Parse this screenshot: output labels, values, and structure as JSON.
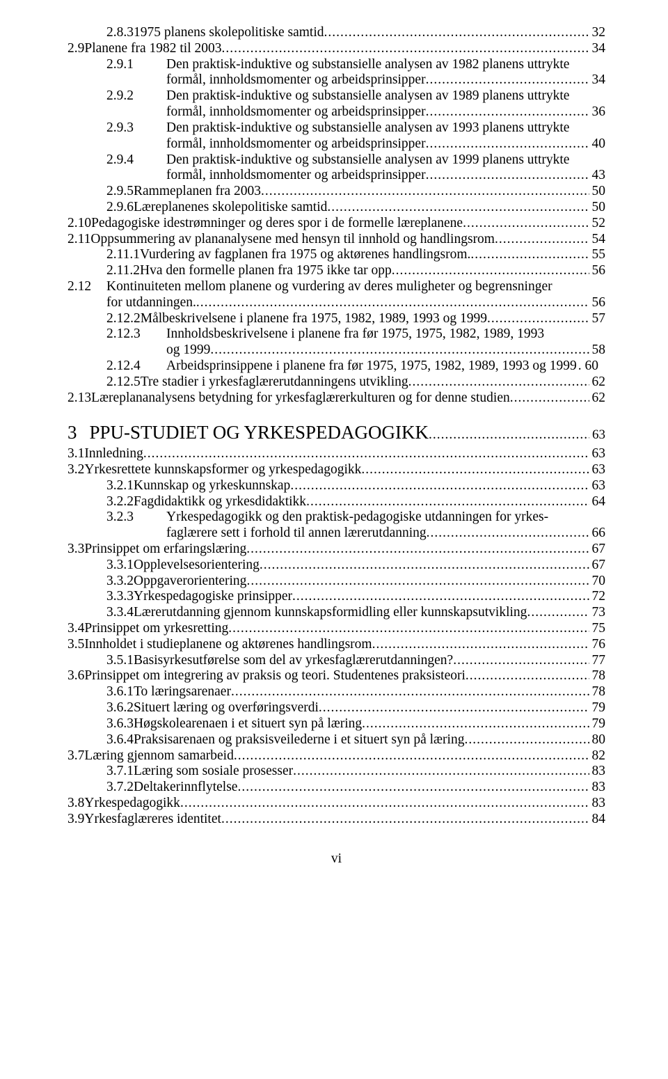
{
  "entries": [
    {
      "lvl": "l3",
      "num": "2.8.3",
      "numw": 86,
      "text": "1975 planens skolepolitiske samtid",
      "page": "32"
    },
    {
      "lvl": "l2",
      "num": "2.9",
      "numw": 56,
      "text": "Planene fra 1982 til 2003",
      "page": "34"
    },
    {
      "lvl": "l3",
      "num": "2.9.1",
      "numw": 86,
      "text": "Den praktisk-induktive og substansielle analysen av 1982 planens uttrykte",
      "cont": "formål, innholdsmomenter og arbeidsprinsipper",
      "page": "34"
    },
    {
      "lvl": "l3",
      "num": "2.9.2",
      "numw": 86,
      "text": "Den praktisk-induktive og substansielle analysen av 1989 planens uttrykte",
      "cont": "formål, innholdsmomenter og arbeidsprinsipper",
      "page": "36"
    },
    {
      "lvl": "l3",
      "num": "2.9.3",
      "numw": 86,
      "text": "Den praktisk-induktive og substansielle analysen av 1993 planens uttrykte",
      "cont": "formål, innholdsmomenter og arbeidsprinsipper",
      "page": "40"
    },
    {
      "lvl": "l3",
      "num": "2.9.4",
      "numw": 86,
      "text": "Den praktisk-induktive og substansielle analysen av 1999 planens uttrykte",
      "cont": "formål, innholdsmomenter og arbeidsprinsipper",
      "page": "43"
    },
    {
      "lvl": "l3",
      "num": "2.9.5",
      "numw": 86,
      "text": "Rammeplanen fra 2003",
      "page": "50"
    },
    {
      "lvl": "l3",
      "num": "2.9.6",
      "numw": 86,
      "text": "Læreplanenes skolepolitiske samtid",
      "page": "50"
    },
    {
      "lvl": "l2",
      "num": "2.10",
      "numw": 56,
      "text": "Pedagogiske idestrømninger og deres spor i de formelle læreplanene",
      "page": "52"
    },
    {
      "lvl": "l2",
      "num": "2.11",
      "numw": 56,
      "text": "Oppsummering av plananalysene med hensyn til innhold og handlingsrom",
      "page": "54"
    },
    {
      "lvl": "l3",
      "num": "2.11.1",
      "numw": 86,
      "text": "Vurdering av fagplanen fra 1975 og aktørenes handlingsrom.",
      "page": "55"
    },
    {
      "lvl": "l3",
      "num": "2.11.2",
      "numw": 86,
      "text": "Hva den formelle planen fra 1975 ikke tar opp",
      "page": "56"
    },
    {
      "lvl": "l2",
      "num": "2.12",
      "numw": 56,
      "text": "Kontinuiteten mellom planene og vurdering av deres muligheter og begrensninger",
      "cont2": "for utdanningen.",
      "page": "56"
    },
    {
      "lvl": "l3",
      "num": "2.12.2",
      "numw": 86,
      "text": "Målbeskrivelsene i planene fra 1975, 1982, 1989, 1993 og 1999",
      "page": "57"
    },
    {
      "lvl": "l3",
      "num": "2.12.3",
      "numw": 86,
      "text": "Innholdsbeskrivelsene i planene fra før 1975, 1975, 1982, 1989, 1993",
      "cont": "og 1999",
      "page": "58"
    },
    {
      "lvl": "l3",
      "num": "2.12.4",
      "numw": 86,
      "text": "Arbeidsprinsippene i planene fra før 1975, 1975, 1982, 1989, 1993 og 1999",
      "page": "60",
      "tight": true
    },
    {
      "lvl": "l3",
      "num": "2.12.5",
      "numw": 86,
      "text": "Tre stadier i yrkesfaglærerutdanningens utvikling",
      "page": "62"
    },
    {
      "lvl": "l2",
      "num": "2.13",
      "numw": 56,
      "text": "Læreplananalysens betydning for yrkesfaglærerkulturen og for denne studien",
      "page": "62"
    }
  ],
  "chapter": {
    "num": "3",
    "title": "PPU-STUDIET OG YRKESPEDAGOGIKK",
    "page": "63"
  },
  "entries2": [
    {
      "lvl": "l2",
      "num": "3.1",
      "numw": 56,
      "text": "Innledning",
      "page": "63"
    },
    {
      "lvl": "l2",
      "num": "3.2",
      "numw": 56,
      "text": "Yrkesrettete kunnskapsformer og yrkespedagogikk",
      "page": "63"
    },
    {
      "lvl": "l3",
      "num": "3.2.1",
      "numw": 86,
      "text": "Kunnskap og yrkeskunnskap",
      "page": "63"
    },
    {
      "lvl": "l3",
      "num": "3.2.2",
      "numw": 86,
      "text": "Fagdidaktikk og yrkesdidaktikk",
      "page": "64"
    },
    {
      "lvl": "l3",
      "num": "3.2.3",
      "numw": 86,
      "text": "Yrkespedagogikk og den praktisk-pedagogiske utdanningen for yrkes-",
      "cont": "faglærere sett i forhold til annen lærerutdanning",
      "page": "66"
    },
    {
      "lvl": "l2",
      "num": "3.3",
      "numw": 56,
      "text": "Prinsippet om erfaringslæring",
      "page": "67"
    },
    {
      "lvl": "l3",
      "num": "3.3.1",
      "numw": 86,
      "text": "Opplevelsesorientering",
      "page": "67"
    },
    {
      "lvl": "l3",
      "num": "3.3.2",
      "numw": 86,
      "text": "Oppgaverorientering",
      "page": "70"
    },
    {
      "lvl": "l3",
      "num": "3.3.3",
      "numw": 86,
      "text": "Yrkespedagogiske prinsipper",
      "page": "72"
    },
    {
      "lvl": "l3",
      "num": "3.3.4",
      "numw": 86,
      "text": "Lærerutdanning gjennom kunnskapsformidling eller kunnskapsutvikling",
      "page": "73"
    },
    {
      "lvl": "l2",
      "num": "3.4",
      "numw": 56,
      "text": "Prinsippet om yrkesretting",
      "page": "75"
    },
    {
      "lvl": "l2",
      "num": "3.5",
      "numw": 56,
      "text": "Innholdet i studieplanene og aktørenes handlingsrom",
      "page": "76"
    },
    {
      "lvl": "l3",
      "num": "3.5.1",
      "numw": 86,
      "text": "Basisyrkesutførelse som del av yrkesfaglærerutdanningen?",
      "page": "77"
    },
    {
      "lvl": "l2",
      "num": "3.6",
      "numw": 56,
      "text": "Prinsippet om integrering av praksis og teori. Studentenes praksisteori",
      "page": "78"
    },
    {
      "lvl": "l3",
      "num": "3.6.1",
      "numw": 86,
      "text": "To læringsarenaer",
      "page": "78"
    },
    {
      "lvl": "l3",
      "num": "3.6.2",
      "numw": 86,
      "text": "Situert læring og overføringsverdi",
      "page": "79"
    },
    {
      "lvl": "l3",
      "num": "3.6.3",
      "numw": 86,
      "text": "Høgskolearenaen i et situert syn på læring",
      "page": "79"
    },
    {
      "lvl": "l3",
      "num": "3.6.4",
      "numw": 86,
      "text": "Praksisarenaen og praksisveilederne i et situert syn på læring",
      "page": "80"
    },
    {
      "lvl": "l2",
      "num": "3.7",
      "numw": 56,
      "text": "Læring gjennom samarbeid",
      "page": "82"
    },
    {
      "lvl": "l3",
      "num": "3.7.1",
      "numw": 86,
      "text": "Læring som sosiale prosesser",
      "page": "83"
    },
    {
      "lvl": "l3",
      "num": "3.7.2",
      "numw": 86,
      "text": "Deltakerinnflytelse",
      "page": "83"
    },
    {
      "lvl": "l2",
      "num": "3.8",
      "numw": 56,
      "text": "Yrkespedagogikk",
      "page": "83"
    },
    {
      "lvl": "l2",
      "num": "3.9",
      "numw": 56,
      "text": "Yrkesfaglæreres identitet",
      "page": "84"
    }
  ],
  "footer": "vi"
}
